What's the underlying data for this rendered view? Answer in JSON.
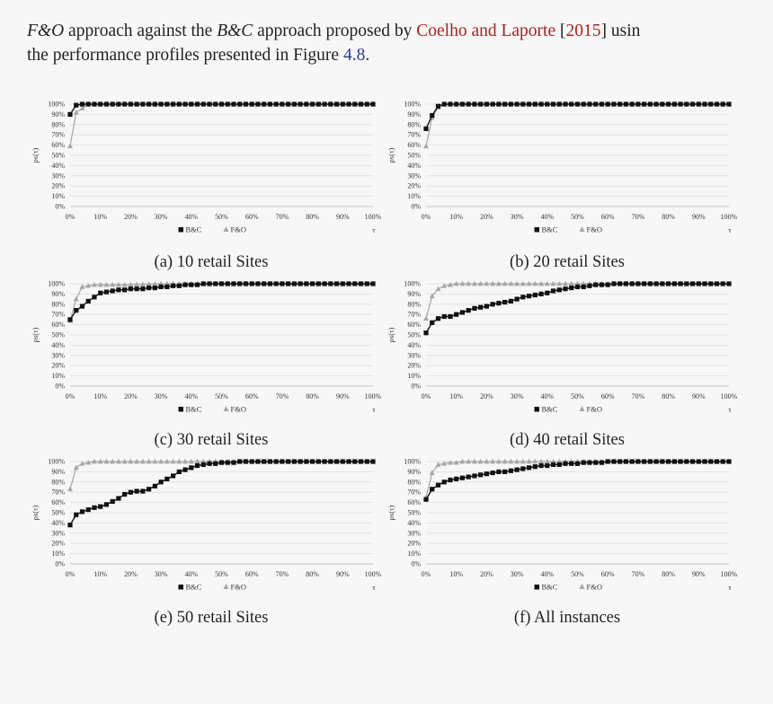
{
  "intro": {
    "line1": {
      "seg1": "F&O",
      "seg2": " approach against the ",
      "seg3": "B&C",
      "seg4": " approach proposed by ",
      "seg5": "Coelho and Laporte",
      "seg6": " [",
      "seg7": "2015",
      "seg8": "] usin"
    },
    "line2": {
      "text": "the performance profiles presented in Figure ",
      "ref": "4.8",
      "end": "."
    }
  },
  "chart_style": {
    "bc_color": "#111111",
    "fo_color": "#a7a7a7",
    "grid_color": "#dddddd"
  },
  "chart_data": [
    {
      "type": "line",
      "caption": "(a) 10 retail Sites",
      "ylabel": "ρs(τ)",
      "xlabel": "τ",
      "x_ticks": [
        "0%",
        "10%",
        "20%",
        "30%",
        "40%",
        "50%",
        "60%",
        "70%",
        "80%",
        "90%",
        "100%"
      ],
      "y_ticks": [
        "0%",
        "10%",
        "20%",
        "30%",
        "40%",
        "50%",
        "60%",
        "70%",
        "80%",
        "90%",
        "100%"
      ],
      "xlim": [
        0,
        100
      ],
      "ylim": [
        0,
        100
      ],
      "legend": "bottom-center",
      "grid": true,
      "series": [
        {
          "name": "B&C",
          "marker": "square",
          "points": [
            [
              0,
              90
            ],
            [
              2,
              99
            ],
            [
              4,
              100
            ],
            [
              100,
              100
            ]
          ]
        },
        {
          "name": "F&O",
          "marker": "triangle",
          "points": [
            [
              0,
              59
            ],
            [
              2,
              92
            ],
            [
              4,
              96
            ],
            [
              6,
              100
            ],
            [
              100,
              100
            ]
          ]
        }
      ]
    },
    {
      "type": "line",
      "caption": "(b) 20 retail Sites",
      "ylabel": "ρs(τ)",
      "xlabel": "τ",
      "x_ticks": [
        "0%",
        "10%",
        "20%",
        "30%",
        "40%",
        "50%",
        "60%",
        "70%",
        "80%",
        "90%",
        "100%"
      ],
      "y_ticks": [
        "0%",
        "10%",
        "20%",
        "30%",
        "40%",
        "50%",
        "60%",
        "70%",
        "80%",
        "90%",
        "100%"
      ],
      "xlim": [
        0,
        100
      ],
      "ylim": [
        0,
        100
      ],
      "legend": "bottom-center",
      "grid": true,
      "series": [
        {
          "name": "B&C",
          "marker": "square",
          "points": [
            [
              0,
              76
            ],
            [
              2,
              89
            ],
            [
              4,
              98
            ],
            [
              6,
              100
            ],
            [
              100,
              100
            ]
          ]
        },
        {
          "name": "F&O",
          "marker": "triangle",
          "points": [
            [
              0,
              59
            ],
            [
              2,
              87
            ],
            [
              4,
              97
            ],
            [
              6,
              100
            ],
            [
              100,
              100
            ]
          ]
        }
      ]
    },
    {
      "type": "line",
      "caption": "(c) 30 retail Sites",
      "ylabel": "ρs(τ)",
      "xlabel": "τ",
      "x_ticks": [
        "0%",
        "10%",
        "20%",
        "30%",
        "40%",
        "50%",
        "60%",
        "70%",
        "80%",
        "90%",
        "100%"
      ],
      "y_ticks": [
        "0%",
        "10%",
        "20%",
        "30%",
        "40%",
        "50%",
        "60%",
        "70%",
        "80%",
        "90%",
        "100%"
      ],
      "xlim": [
        0,
        100
      ],
      "ylim": [
        0,
        100
      ],
      "legend": "bottom-center",
      "grid": true,
      "series": [
        {
          "name": "B&C",
          "marker": "square",
          "points": [
            [
              0,
              65
            ],
            [
              2,
              74
            ],
            [
              4,
              78
            ],
            [
              6,
              83
            ],
            [
              8,
              87
            ],
            [
              10,
              91
            ],
            [
              12,
              92
            ],
            [
              14,
              93
            ],
            [
              16,
              94
            ],
            [
              18,
              94
            ],
            [
              20,
              95
            ],
            [
              22,
              95
            ],
            [
              24,
              95
            ],
            [
              26,
              96
            ],
            [
              28,
              96
            ],
            [
              30,
              97
            ],
            [
              32,
              97
            ],
            [
              34,
              98
            ],
            [
              36,
              98
            ],
            [
              38,
              99
            ],
            [
              40,
              99
            ],
            [
              42,
              99
            ],
            [
              44,
              100
            ],
            [
              100,
              100
            ]
          ]
        },
        {
          "name": "F&O",
          "marker": "triangle",
          "points": [
            [
              0,
              64
            ],
            [
              2,
              85
            ],
            [
              4,
              97
            ],
            [
              6,
              98
            ],
            [
              8,
              99
            ],
            [
              10,
              99
            ],
            [
              20,
              99
            ],
            [
              30,
              100
            ],
            [
              40,
              100
            ],
            [
              60,
              100
            ],
            [
              70,
              100
            ],
            [
              100,
              100
            ]
          ]
        }
      ]
    },
    {
      "type": "line",
      "caption": "(d) 40 retail Sites",
      "ylabel": "ρs(τ)",
      "xlabel": "τ",
      "x_ticks": [
        "0%",
        "10%",
        "20%",
        "30%",
        "40%",
        "50%",
        "60%",
        "70%",
        "80%",
        "90%",
        "100%"
      ],
      "y_ticks": [
        "0%",
        "10%",
        "20%",
        "30%",
        "40%",
        "50%",
        "60%",
        "70%",
        "80%",
        "90%",
        "100%"
      ],
      "xlim": [
        0,
        100
      ],
      "ylim": [
        0,
        100
      ],
      "legend": "bottom-center",
      "grid": true,
      "series": [
        {
          "name": "B&C",
          "marker": "square",
          "points": [
            [
              0,
              52
            ],
            [
              2,
              62
            ],
            [
              4,
              66
            ],
            [
              6,
              68
            ],
            [
              8,
              68
            ],
            [
              10,
              70
            ],
            [
              12,
              72
            ],
            [
              14,
              74
            ],
            [
              16,
              76
            ],
            [
              18,
              77
            ],
            [
              20,
              78
            ],
            [
              22,
              80
            ],
            [
              24,
              81
            ],
            [
              26,
              82
            ],
            [
              28,
              83
            ],
            [
              30,
              85
            ],
            [
              32,
              87
            ],
            [
              34,
              88
            ],
            [
              36,
              89
            ],
            [
              38,
              90
            ],
            [
              40,
              91
            ],
            [
              42,
              93
            ],
            [
              44,
              94
            ],
            [
              46,
              95
            ],
            [
              48,
              96
            ],
            [
              50,
              97
            ],
            [
              52,
              97
            ],
            [
              54,
              98
            ],
            [
              56,
              99
            ],
            [
              58,
              99
            ],
            [
              60,
              99
            ],
            [
              62,
              100
            ],
            [
              64,
              100
            ],
            [
              100,
              100
            ]
          ]
        },
        {
          "name": "F&O",
          "marker": "triangle",
          "points": [
            [
              0,
              66
            ],
            [
              2,
              88
            ],
            [
              4,
              95
            ],
            [
              6,
              98
            ],
            [
              8,
              99
            ],
            [
              10,
              100
            ],
            [
              100,
              100
            ]
          ]
        }
      ]
    },
    {
      "type": "line",
      "caption": "(e) 50 retail Sites",
      "ylabel": "ρs(τ)",
      "xlabel": "τ",
      "x_ticks": [
        "0%",
        "10%",
        "20%",
        "30%",
        "40%",
        "50%",
        "60%",
        "70%",
        "80%",
        "90%",
        "100%"
      ],
      "y_ticks": [
        "0%",
        "10%",
        "20%",
        "30%",
        "40%",
        "50%",
        "60%",
        "70%",
        "80%",
        "90%",
        "100%"
      ],
      "xlim": [
        0,
        100
      ],
      "ylim": [
        0,
        100
      ],
      "legend": "bottom-center",
      "grid": true,
      "series": [
        {
          "name": "B&C",
          "marker": "square",
          "points": [
            [
              0,
              38
            ],
            [
              2,
              48
            ],
            [
              4,
              51
            ],
            [
              6,
              53
            ],
            [
              8,
              55
            ],
            [
              10,
              56
            ],
            [
              12,
              58
            ],
            [
              14,
              61
            ],
            [
              16,
              64
            ],
            [
              18,
              68
            ],
            [
              20,
              70
            ],
            [
              22,
              71
            ],
            [
              24,
              71
            ],
            [
              26,
              73
            ],
            [
              28,
              76
            ],
            [
              30,
              80
            ],
            [
              32,
              83
            ],
            [
              34,
              86
            ],
            [
              36,
              90
            ],
            [
              38,
              92
            ],
            [
              40,
              94
            ],
            [
              42,
              96
            ],
            [
              44,
              97
            ],
            [
              46,
              98
            ],
            [
              48,
              98
            ],
            [
              50,
              99
            ],
            [
              52,
              99
            ],
            [
              54,
              99
            ],
            [
              56,
              100
            ],
            [
              100,
              100
            ]
          ]
        },
        {
          "name": "F&O",
          "marker": "triangle",
          "points": [
            [
              0,
              73
            ],
            [
              2,
              94
            ],
            [
              4,
              98
            ],
            [
              6,
              99
            ],
            [
              8,
              100
            ],
            [
              100,
              100
            ]
          ]
        }
      ]
    },
    {
      "type": "line",
      "caption": "(f) All instances",
      "ylabel": "ρs(τ)",
      "xlabel": "τ",
      "x_ticks": [
        "0%",
        "10%",
        "20%",
        "30%",
        "40%",
        "50%",
        "60%",
        "70%",
        "80%",
        "90%",
        "100%"
      ],
      "y_ticks": [
        "0%",
        "10%",
        "20%",
        "30%",
        "40%",
        "50%",
        "60%",
        "70%",
        "80%",
        "90%",
        "100%"
      ],
      "xlim": [
        0,
        100
      ],
      "ylim": [
        0,
        100
      ],
      "legend": "bottom-center",
      "grid": true,
      "series": [
        {
          "name": "B&C",
          "marker": "square",
          "points": [
            [
              0,
              63
            ],
            [
              2,
              73
            ],
            [
              4,
              77
            ],
            [
              6,
              80
            ],
            [
              8,
              82
            ],
            [
              10,
              83
            ],
            [
              12,
              84
            ],
            [
              14,
              85
            ],
            [
              16,
              86
            ],
            [
              18,
              87
            ],
            [
              20,
              88
            ],
            [
              22,
              89
            ],
            [
              24,
              90
            ],
            [
              26,
              90
            ],
            [
              28,
              91
            ],
            [
              30,
              92
            ],
            [
              32,
              93
            ],
            [
              34,
              94
            ],
            [
              36,
              95
            ],
            [
              38,
              96
            ],
            [
              40,
              96
            ],
            [
              42,
              97
            ],
            [
              44,
              97
            ],
            [
              46,
              98
            ],
            [
              48,
              98
            ],
            [
              50,
              98
            ],
            [
              52,
              99
            ],
            [
              54,
              99
            ],
            [
              56,
              99
            ],
            [
              58,
              99
            ],
            [
              60,
              100
            ],
            [
              100,
              100
            ]
          ]
        },
        {
          "name": "F&O",
          "marker": "triangle",
          "points": [
            [
              0,
              65
            ],
            [
              2,
              89
            ],
            [
              4,
              97
            ],
            [
              6,
              98
            ],
            [
              8,
              99
            ],
            [
              10,
              99
            ],
            [
              12,
              100
            ],
            [
              100,
              100
            ]
          ]
        }
      ]
    }
  ]
}
